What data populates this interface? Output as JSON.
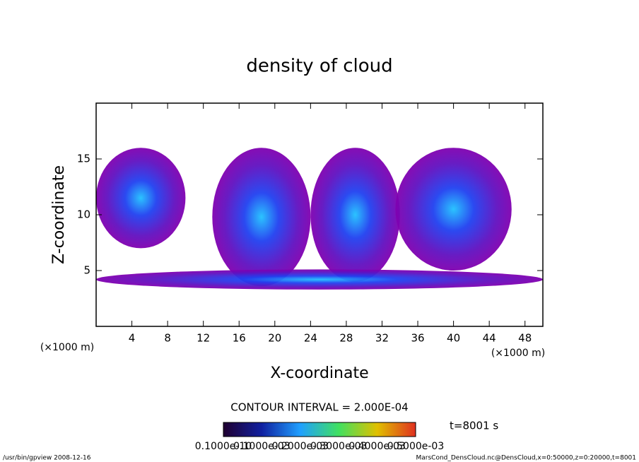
{
  "chart_data": {
    "type": "contour",
    "title": "density of cloud",
    "x_label": "X-coordinate",
    "y_label": "Z-coordinate",
    "x_unit": "(×1000 m)",
    "y_unit": "(×1000 m)",
    "xlim": [
      0,
      50
    ],
    "xticks": [
      4,
      8,
      12,
      16,
      20,
      24,
      28,
      32,
      36,
      40,
      44,
      48
    ],
    "ylim": [
      0,
      20
    ],
    "yticks": [
      5,
      10,
      15
    ],
    "clouds": [
      {
        "x": 5,
        "z": 11.5,
        "rx": 5,
        "rz": 4.5
      },
      {
        "x": 18.5,
        "z": 9.8,
        "rx": 5.5,
        "rz": 6.2
      },
      {
        "x": 29,
        "z": 10,
        "rx": 5,
        "rz": 6
      },
      {
        "x": 40,
        "z": 10.5,
        "rx": 6.5,
        "rz": 5.5
      },
      {
        "x": 25,
        "z": 4.2,
        "rx": 25,
        "rz": 0.9
      }
    ],
    "contour_interval": "CONTOUR INTERVAL = 2.000E-04",
    "time_label": "t=8001 s",
    "colorbar_labels": [
      "0.1000e-10",
      "0.1000e-03",
      "0.2000e-03",
      "0.3000e-03",
      "0.4000e-03",
      "0.5000e-03"
    ],
    "footer_left": "/usr/bin/gpview   2008-12-16",
    "footer_right": "MarsCond_DensCloud.nc@DensCloud,x=0:50000,z=0:20000,t=8001"
  }
}
